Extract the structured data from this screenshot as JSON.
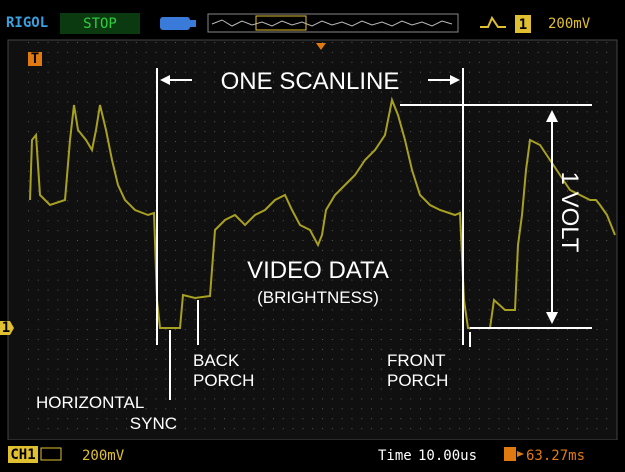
{
  "top_bar": {
    "brand": "RIGOL",
    "status": "STOP",
    "channel": "1",
    "scale": "200mV"
  },
  "screen": {
    "trigger_marker": "T",
    "channel_marker": "1",
    "annotations": {
      "scanline": "ONE SCANLINE",
      "volt": "1 VOLT",
      "video_data": "VIDEO DATA",
      "brightness": "(BRIGHTNESS)",
      "back_porch": [
        "BACK",
        "PORCH"
      ],
      "front_porch": [
        "FRONT",
        "PORCH"
      ],
      "horizontal_sync": [
        "HORIZONTAL",
        "SYNC"
      ]
    }
  },
  "bottom_bar": {
    "channel": "CH1",
    "scale": "200mV",
    "time_label": "Time",
    "time_value": "10.00us",
    "trigger_offset": "63.27ms"
  }
}
